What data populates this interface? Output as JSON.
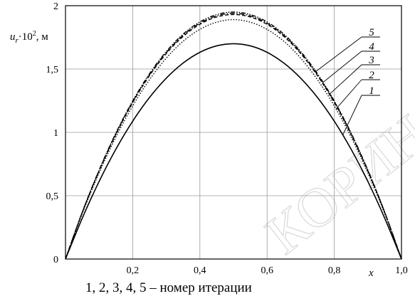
{
  "chart_data": {
    "type": "line",
    "title": "",
    "xlabel": "x",
    "ylabel_parts": {
      "var": "u",
      "sub": "r",
      "mid": "·10",
      "sup": "2",
      "unit": ", м"
    },
    "xlim": [
      0,
      1.0
    ],
    "ylim": [
      0,
      2
    ],
    "grid": true,
    "x_ticks": [
      0.2,
      0.4,
      0.6,
      0.8,
      1.0
    ],
    "x_tick_labels": [
      "0,2",
      "0,4",
      "0,6",
      "0,8",
      "1,0"
    ],
    "y_ticks": [
      0,
      0.5,
      1,
      1.5,
      2
    ],
    "y_tick_labels": [
      "0",
      "0,5",
      "1",
      "1,5",
      "2"
    ],
    "x": [
      0,
      0.05,
      0.1,
      0.15,
      0.2,
      0.25,
      0.3,
      0.35,
      0.4,
      0.45,
      0.5,
      0.55,
      0.6,
      0.65,
      0.7,
      0.75,
      0.8,
      0.85,
      0.9,
      0.95,
      1.0
    ],
    "series": [
      {
        "name": "1",
        "style": "solid",
        "values": [
          0,
          0.323,
          0.612,
          0.867,
          1.088,
          1.275,
          1.428,
          1.547,
          1.632,
          1.683,
          1.7,
          1.683,
          1.632,
          1.547,
          1.428,
          1.275,
          1.088,
          0.867,
          0.612,
          0.323,
          0
        ]
      },
      {
        "name": "2",
        "style": "dotted",
        "values": [
          0,
          0.359,
          0.68,
          0.963,
          1.209,
          1.416,
          1.586,
          1.719,
          1.813,
          1.87,
          1.89,
          1.87,
          1.813,
          1.719,
          1.586,
          1.416,
          1.209,
          0.963,
          0.68,
          0.359,
          0
        ]
      },
      {
        "name": "3",
        "style": "dashed",
        "values": [
          0,
          0.367,
          0.695,
          0.984,
          1.235,
          1.448,
          1.622,
          1.757,
          1.853,
          1.911,
          1.93,
          1.911,
          1.853,
          1.757,
          1.622,
          1.448,
          1.235,
          0.984,
          0.695,
          0.367,
          0
        ]
      },
      {
        "name": "4",
        "style": "dashdot",
        "values": [
          0,
          0.369,
          0.698,
          0.989,
          1.242,
          1.455,
          1.63,
          1.766,
          1.862,
          1.92,
          1.94,
          1.92,
          1.862,
          1.766,
          1.63,
          1.455,
          1.242,
          0.989,
          0.698,
          0.369,
          0
        ]
      },
      {
        "name": "5",
        "style": "dashdotdot",
        "values": [
          0,
          0.371,
          0.702,
          0.995,
          1.248,
          1.463,
          1.638,
          1.775,
          1.872,
          1.93,
          1.95,
          1.93,
          1.872,
          1.775,
          1.638,
          1.463,
          1.248,
          0.995,
          0.702,
          0.371,
          0
        ]
      }
    ],
    "annotation_labels": [
      "5",
      "4",
      "3",
      "2",
      "1"
    ],
    "caption": "1, 2, 3, 4, 5 – номер итерации"
  },
  "watermark": "КОРИН"
}
